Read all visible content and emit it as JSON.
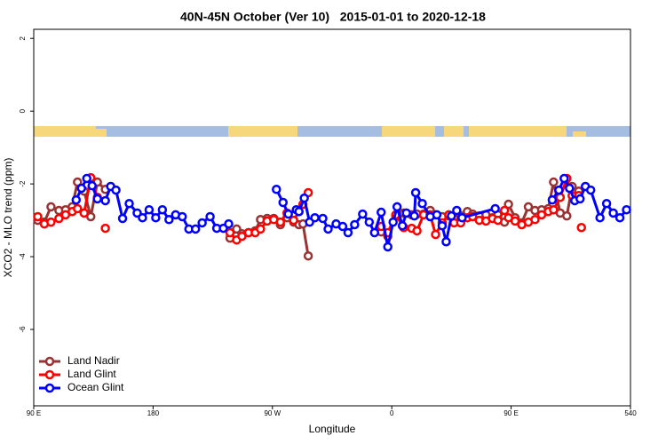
{
  "chart_data": {
    "type": "line",
    "title": "40N-45N October (Ver 10)   2015-01-01 to 2020-12-18",
    "x_label": "Longitude",
    "y_label": "XCO2 - MLO trend (ppm)",
    "xlim": [
      90,
      540
    ],
    "ylim": [
      -8.1,
      2.25
    ],
    "xticks": [
      {
        "value": 90,
        "label": "90 E"
      },
      180,
      {
        "value": 270,
        "label": "90 W"
      },
      {
        "value": 360,
        "label": "0"
      },
      {
        "value": 450,
        "label": "90 E"
      },
      540
    ],
    "yticks": [
      -6,
      -4,
      -2,
      0,
      2
    ],
    "legend": "bottom-left",
    "series": [
      {
        "name": "Land Nadir",
        "color": "#993333",
        "x": [
          93,
          98,
          103,
          109,
          114,
          119,
          123,
          128,
          133,
          138,
          144,
          null,
          238,
          243,
          247,
          252,
          257,
          261,
          266,
          271,
          276,
          281,
          286,
          290,
          293,
          297,
          null,
          352,
          357,
          363,
          369,
          375,
          379,
          384,
          389,
          393,
          398,
          403,
          407,
          412,
          417,
          421,
          426,
          431,
          436,
          440,
          445,
          448,
          453,
          458,
          463,
          468,
          473,
          478,
          482,
          487,
          492,
          496,
          501
        ],
        "values": [
          -3.0,
          -3.05,
          -2.63,
          -2.73,
          -2.71,
          -2.63,
          -1.95,
          -2.2,
          -2.9,
          -1.95,
          -2.15,
          null,
          -3.49,
          -3.24,
          -3.37,
          -3.34,
          -3.29,
          -2.98,
          -2.95,
          -2.95,
          -3.12,
          -2.93,
          -3.05,
          -3.12,
          -3.1,
          -3.98,
          null,
          -3.32,
          -3.44,
          -2.88,
          -2.8,
          -2.85,
          -2.83,
          -2.83,
          -2.73,
          -2.85,
          -2.9,
          -2.88,
          -2.93,
          -2.88,
          -2.76,
          -2.83,
          -2.88,
          -2.85,
          -2.93,
          -2.85,
          -3.05,
          -2.56,
          -2.93,
          -3.07,
          -2.63,
          -2.73,
          -2.71,
          -2.68,
          -1.95,
          -2.8,
          -2.88,
          -2.07,
          -2.2
        ]
      },
      {
        "name": "Land Glint",
        "color": "#ff0000",
        "x": [
          93,
          98,
          103,
          109,
          114,
          119,
          123,
          128,
          133,
          138,
          null,
          144,
          null,
          238,
          243,
          247,
          252,
          257,
          261,
          266,
          271,
          276,
          281,
          286,
          290,
          293,
          297,
          null,
          352,
          357,
          363,
          369,
          375,
          379,
          384,
          389,
          393,
          398,
          403,
          407,
          412,
          417,
          421,
          426,
          431,
          436,
          440,
          445,
          448,
          453,
          458,
          463,
          468,
          473,
          478,
          482,
          487,
          492,
          496,
          501,
          null,
          503
        ],
        "values": [
          -2.9,
          -3.1,
          -3.05,
          -2.95,
          -2.85,
          -2.76,
          -2.68,
          -2.8,
          -1.83,
          -2.37,
          null,
          -3.22,
          null,
          -3.34,
          -3.54,
          -3.44,
          -3.34,
          -3.34,
          -3.24,
          -3.02,
          -2.98,
          -3.05,
          -2.8,
          -3.0,
          -2.76,
          -2.56,
          -2.24,
          null,
          -3.17,
          -3.34,
          -2.85,
          -3.2,
          -3.22,
          -3.29,
          -2.85,
          -2.85,
          -3.39,
          -3.07,
          -2.85,
          -3.07,
          -3.07,
          -2.93,
          -2.9,
          -3.0,
          -3.02,
          -2.95,
          -3.0,
          -2.73,
          -2.93,
          -3.02,
          -3.12,
          -3.05,
          -2.98,
          -2.85,
          -2.76,
          -2.71,
          -2.37,
          -1.85,
          -2.32,
          -2.32,
          null,
          -3.2
        ]
      },
      {
        "name": "Ocean Glint",
        "color": "#0000ff",
        "x": [
          122,
          126,
          130,
          134,
          138,
          144,
          148,
          152,
          157,
          162,
          168,
          172,
          177,
          182,
          187,
          192,
          197,
          202,
          207,
          212,
          217,
          223,
          228,
          233,
          237,
          null,
          273,
          278,
          282,
          288,
          290,
          294,
          298,
          302,
          308,
          312,
          318,
          323,
          327,
          332,
          338,
          343,
          347,
          352,
          357,
          361,
          364,
          368,
          371,
          377,
          378,
          383,
          389,
          394,
          398,
          401,
          405,
          409,
          413,
          438,
          null,
          481,
          486,
          490,
          494,
          498,
          502,
          506,
          510,
          517,
          522,
          527,
          532,
          537
        ],
        "values": [
          -2.44,
          -2.12,
          -1.85,
          -2.05,
          -2.41,
          -2.46,
          -2.07,
          -2.17,
          -2.95,
          -2.54,
          -2.8,
          -2.93,
          -2.71,
          -2.93,
          -2.71,
          -2.98,
          -2.85,
          -2.9,
          -3.24,
          -3.24,
          -3.07,
          -2.9,
          -3.22,
          -3.22,
          -3.1,
          null,
          -2.15,
          -2.51,
          -2.83,
          -2.71,
          -2.76,
          -2.39,
          -3.05,
          -2.93,
          -2.95,
          -3.24,
          -3.1,
          -3.17,
          -3.34,
          -3.12,
          -2.83,
          -3.05,
          -3.34,
          -2.78,
          -3.73,
          -3.05,
          -2.63,
          -3.15,
          -2.8,
          -2.88,
          -2.24,
          -2.54,
          -2.9,
          -2.85,
          -3.15,
          -3.59,
          -2.88,
          -2.73,
          -2.93,
          -2.68,
          null,
          -2.44,
          -2.17,
          -1.85,
          -2.12,
          -2.46,
          -2.41,
          -2.07,
          -2.17,
          -2.93,
          -2.54,
          -2.8,
          -2.93,
          -2.71
        ]
      }
    ]
  }
}
